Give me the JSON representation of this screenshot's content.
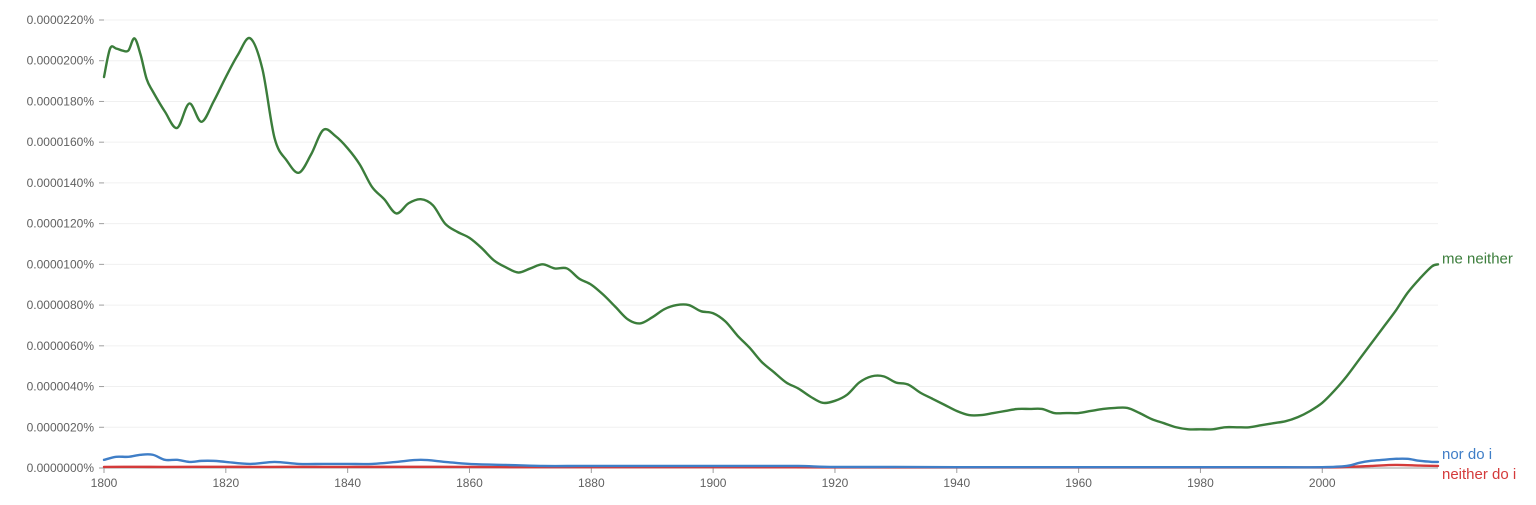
{
  "chart_data": {
    "type": "line",
    "title": "",
    "xlabel": "",
    "ylabel": "",
    "xlim": [
      1800,
      2019
    ],
    "ylim": [
      0,
      2.2e-05
    ],
    "x_ticks": [
      1800,
      1820,
      1840,
      1860,
      1880,
      1900,
      1920,
      1940,
      1960,
      1980,
      2000
    ],
    "x_tick_labels": [
      "1800",
      "1820",
      "1840",
      "1860",
      "1880",
      "1900",
      "1920",
      "1940",
      "1960",
      "1980",
      "2000"
    ],
    "y_ticks": [
      0,
      2e-06,
      4e-06,
      6e-06,
      8e-06,
      1e-05,
      1.2e-05,
      1.4e-05,
      1.6e-05,
      1.8e-05,
      2e-05,
      2.2e-05
    ],
    "y_tick_labels": [
      "0.0000000%",
      "0.0000020%",
      "0.0000040%",
      "0.0000060%",
      "0.0000080%",
      "0.0000100%",
      "0.0000120%",
      "0.0000140%",
      "0.0000160%",
      "0.0000180%",
      "0.0000200%",
      "0.0000220%"
    ],
    "grid": true,
    "legend": "inline-right",
    "series": [
      {
        "name": "me neither",
        "color": "#3b7d3b",
        "x": [
          1800,
          1801,
          1802,
          1803,
          1804,
          1805,
          1806,
          1807,
          1808,
          1810,
          1812,
          1814,
          1816,
          1818,
          1820,
          1822,
          1824,
          1826,
          1828,
          1830,
          1832,
          1834,
          1836,
          1838,
          1840,
          1842,
          1844,
          1846,
          1848,
          1850,
          1852,
          1854,
          1856,
          1858,
          1860,
          1862,
          1864,
          1866,
          1868,
          1870,
          1872,
          1874,
          1876,
          1878,
          1880,
          1882,
          1884,
          1886,
          1888,
          1890,
          1892,
          1894,
          1896,
          1898,
          1900,
          1902,
          1904,
          1906,
          1908,
          1910,
          1912,
          1914,
          1916,
          1918,
          1920,
          1922,
          1924,
          1926,
          1928,
          1930,
          1932,
          1934,
          1936,
          1938,
          1940,
          1942,
          1944,
          1946,
          1948,
          1950,
          1952,
          1954,
          1956,
          1958,
          1960,
          1962,
          1964,
          1966,
          1968,
          1970,
          1972,
          1974,
          1976,
          1978,
          1980,
          1982,
          1984,
          1986,
          1988,
          1990,
          1992,
          1994,
          1996,
          1998,
          2000,
          2002,
          2004,
          2006,
          2008,
          2010,
          2012,
          2014,
          2016,
          2018,
          2019
        ],
        "values": [
          1.92e-05,
          2.06e-05,
          2.06e-05,
          2.05e-05,
          2.05e-05,
          2.11e-05,
          2.03e-05,
          1.91e-05,
          1.85e-05,
          1.75e-05,
          1.67e-05,
          1.79e-05,
          1.7e-05,
          1.8e-05,
          1.92e-05,
          2.03e-05,
          2.11e-05,
          1.96e-05,
          1.62e-05,
          1.51e-05,
          1.45e-05,
          1.54e-05,
          1.66e-05,
          1.63e-05,
          1.57e-05,
          1.49e-05,
          1.38e-05,
          1.32e-05,
          1.25e-05,
          1.3e-05,
          1.32e-05,
          1.29e-05,
          1.2e-05,
          1.16e-05,
          1.13e-05,
          1.08e-05,
          1.02e-05,
          9.85e-06,
          9.6e-06,
          9.8e-06,
          1e-05,
          9.8e-06,
          9.8e-06,
          9.3e-06,
          9e-06,
          8.5e-06,
          7.9e-06,
          7.3e-06,
          7.1e-06,
          7.4e-06,
          7.8e-06,
          8e-06,
          8e-06,
          7.7e-06,
          7.6e-06,
          7.2e-06,
          6.5e-06,
          5.9e-06,
          5.2e-06,
          4.7e-06,
          4.2e-06,
          3.9e-06,
          3.5e-06,
          3.2e-06,
          3.3e-06,
          3.6e-06,
          4.2e-06,
          4.5e-06,
          4.5e-06,
          4.2e-06,
          4.1e-06,
          3.7e-06,
          3.4e-06,
          3.1e-06,
          2.8e-06,
          2.6e-06,
          2.6e-06,
          2.7e-06,
          2.8e-06,
          2.9e-06,
          2.9e-06,
          2.9e-06,
          2.7e-06,
          2.7e-06,
          2.7e-06,
          2.8e-06,
          2.9e-06,
          2.95e-06,
          2.95e-06,
          2.7e-06,
          2.4e-06,
          2.2e-06,
          2e-06,
          1.9e-06,
          1.9e-06,
          1.9e-06,
          2e-06,
          2e-06,
          2e-06,
          2.1e-06,
          2.2e-06,
          2.3e-06,
          2.5e-06,
          2.8e-06,
          3.2e-06,
          3.8e-06,
          4.5e-06,
          5.3e-06,
          6.1e-06,
          6.9e-06,
          7.7e-06,
          8.6e-06,
          9.3e-06,
          9.9e-06,
          1e-05
        ]
      },
      {
        "name": "nor do i",
        "color": "#3f7ec7",
        "x": [
          1800,
          1802,
          1804,
          1806,
          1808,
          1810,
          1812,
          1814,
          1816,
          1818,
          1820,
          1824,
          1828,
          1832,
          1836,
          1840,
          1844,
          1848,
          1852,
          1856,
          1860,
          1866,
          1872,
          1878,
          1884,
          1890,
          1896,
          1902,
          1908,
          1914,
          1920,
          1930,
          1940,
          1950,
          1960,
          1970,
          1980,
          1990,
          2000,
          2004,
          2006,
          2008,
          2010,
          2012,
          2014,
          2016,
          2018,
          2019
        ],
        "values": [
          4e-07,
          5.5e-07,
          5.5e-07,
          6.5e-07,
          6.5e-07,
          4e-07,
          4e-07,
          3e-07,
          3.5e-07,
          3.5e-07,
          3e-07,
          2e-07,
          3e-07,
          2e-07,
          2e-07,
          2e-07,
          2e-07,
          3e-07,
          4e-07,
          3e-07,
          2e-07,
          1.5e-07,
          1e-07,
          1e-07,
          1e-07,
          1e-07,
          1e-07,
          1e-07,
          1e-07,
          1e-07,
          5e-08,
          5e-08,
          4e-08,
          4e-08,
          4e-08,
          4e-08,
          4e-08,
          4e-08,
          4e-08,
          1e-07,
          2.5e-07,
          3.5e-07,
          4e-07,
          4.5e-07,
          4.5e-07,
          3.5e-07,
          3e-07,
          3e-07
        ]
      },
      {
        "name": "neither do i",
        "color": "#d43a3a",
        "x": [
          1800,
          1805,
          1810,
          1815,
          1820,
          1825,
          1830,
          1840,
          1850,
          1860,
          1870,
          1880,
          1890,
          1900,
          1920,
          1940,
          1960,
          1980,
          2000,
          2004,
          2008,
          2012,
          2016,
          2019
        ],
        "values": [
          5e-08,
          6e-08,
          5e-08,
          6e-08,
          6e-08,
          5e-08,
          6e-08,
          5e-08,
          6e-08,
          5e-08,
          4e-08,
          4e-08,
          4e-08,
          4e-08,
          3e-08,
          3e-08,
          3e-08,
          3e-08,
          3e-08,
          5e-08,
          1e-07,
          1.5e-07,
          1.2e-07,
          1e-07
        ]
      }
    ]
  }
}
